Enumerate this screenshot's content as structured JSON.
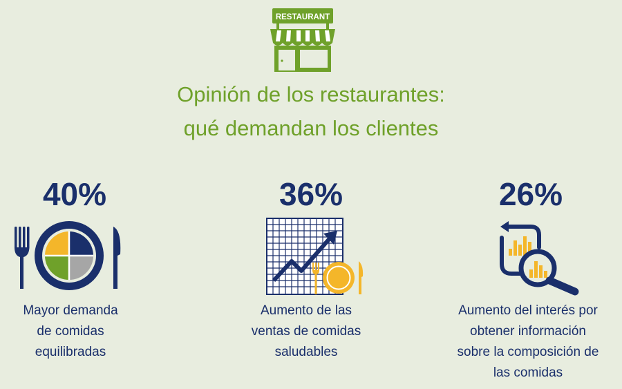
{
  "logo": {
    "sign_text": "RESTAURANT"
  },
  "title": {
    "line1": "Opinión de los restaurantes:",
    "line2": "qué demandan los clientes"
  },
  "stats": [
    {
      "value": "40%",
      "icon": "balanced-meal-plate-icon",
      "description": [
        "Mayor demanda",
        "de comidas",
        "equilibradas"
      ]
    },
    {
      "value": "36%",
      "icon": "rising-sales-chart-icon",
      "description": [
        "Aumento de las",
        "ventas de comidas",
        "saludables"
      ]
    },
    {
      "value": "26%",
      "icon": "information-search-icon",
      "description": [
        "Aumento del interés por",
        "obtener información",
        "sobre la composición de",
        "las comidas"
      ]
    }
  ],
  "colors": {
    "background": "#e8eddf",
    "green": "#6fa12a",
    "navy": "#1a2f6b",
    "yellow": "#f4b62a",
    "gray": "#a6a6a6"
  }
}
